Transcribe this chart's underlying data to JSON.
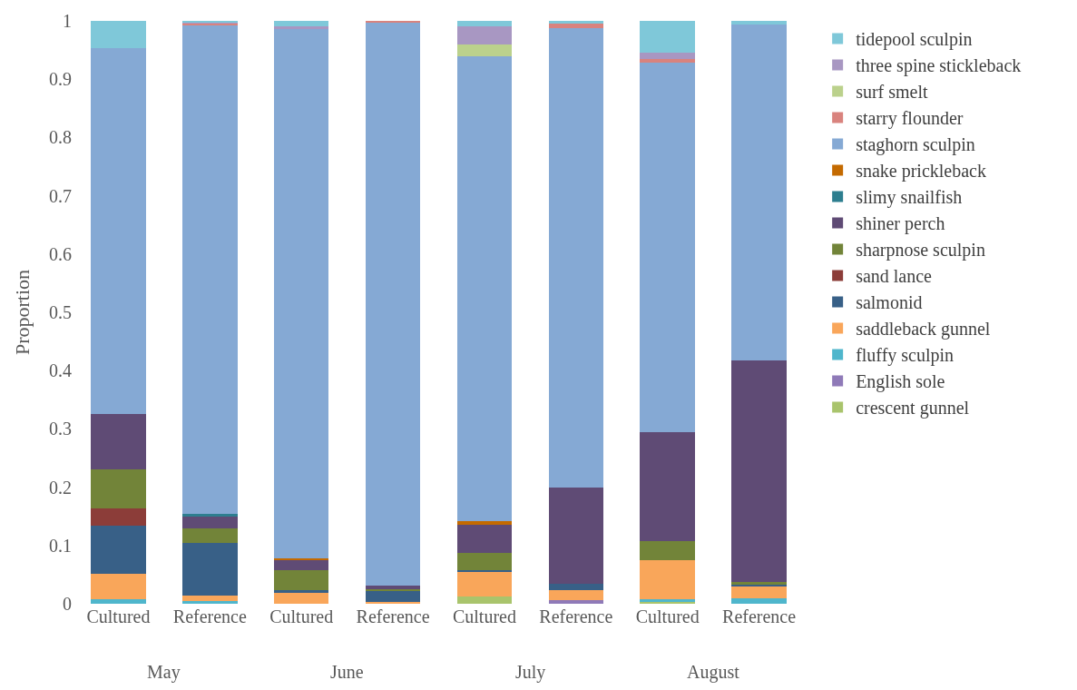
{
  "chart_data": {
    "type": "bar",
    "stacked": true,
    "ylabel": "Proportion",
    "categories": [
      "Cultured",
      "Reference",
      "Cultured",
      "Reference",
      "Cultured",
      "Reference",
      "Cultured",
      "Reference"
    ],
    "annotations": [
      "May",
      "June",
      "July",
      "August"
    ],
    "ylim": [
      0,
      1
    ],
    "yticks": [
      0,
      0.1,
      0.2,
      0.3,
      0.4,
      0.5,
      0.6,
      0.7,
      0.8,
      0.9,
      1
    ],
    "legend": "right",
    "series": [
      {
        "name": "crescent gunnel",
        "color": "#a9c46c",
        "values": [
          0,
          0,
          0,
          0,
          0.013,
          0,
          0.003,
          0
        ]
      },
      {
        "name": "English sole",
        "color": "#8f7ab8",
        "values": [
          0,
          0,
          0,
          0,
          0,
          0.006,
          0,
          0
        ]
      },
      {
        "name": "fluffy sculpin",
        "color": "#4fb6cc",
        "values": [
          0.008,
          0.004,
          0,
          0,
          0,
          0,
          0.005,
          0.009
        ]
      },
      {
        "name": "saddleback gunnel",
        "color": "#f9a65a",
        "values": [
          0.043,
          0.01,
          0.019,
          0.003,
          0.042,
          0.018,
          0.066,
          0.022
        ]
      },
      {
        "name": "salmonid",
        "color": "#386087",
        "values": [
          0.083,
          0.091,
          0.004,
          0.019,
          0.002,
          0.01,
          0,
          0.003
        ]
      },
      {
        "name": "sand lance",
        "color": "#8c3d39",
        "values": [
          0.029,
          0,
          0,
          0,
          0,
          0,
          0,
          0
        ]
      },
      {
        "name": "sharpnose sculpin",
        "color": "#728439",
        "values": [
          0.067,
          0.025,
          0.034,
          0.003,
          0.031,
          0,
          0.034,
          0.003
        ]
      },
      {
        "name": "shiner perch",
        "color": "#5f4b75",
        "values": [
          0.096,
          0.021,
          0.018,
          0.006,
          0.048,
          0.165,
          0.186,
          0.38
        ]
      },
      {
        "name": "slimy snailfish",
        "color": "#2d7e8f",
        "values": [
          0,
          0.003,
          0,
          0,
          0,
          0,
          0,
          0
        ]
      },
      {
        "name": "snake prickleback",
        "color": "#c46a00",
        "values": [
          0,
          0,
          0.003,
          0,
          0.005,
          0,
          0,
          0
        ]
      },
      {
        "name": "staghorn sculpin",
        "color": "#85a9d4",
        "values": [
          0.628,
          0.839,
          0.908,
          0.966,
          0.799,
          0.788,
          0.635,
          0.577
        ]
      },
      {
        "name": "starry flounder",
        "color": "#d9837e",
        "values": [
          0,
          0.003,
          0,
          0.003,
          0,
          0.008,
          0.006,
          0
        ]
      },
      {
        "name": "surf smelt",
        "color": "#bbd18c",
        "values": [
          0,
          0,
          0,
          0,
          0.02,
          0,
          0,
          0
        ]
      },
      {
        "name": "three spine stickleback",
        "color": "#a897c2",
        "values": [
          0,
          0.002,
          0.005,
          0,
          0.03,
          0,
          0.011,
          null
        ]
      },
      {
        "name": "tidepool sculpin",
        "color": "#7fc8d9",
        "values": [
          0.046,
          0.002,
          0.009,
          0,
          0.01,
          0.005,
          0.054,
          0.006
        ]
      }
    ]
  }
}
